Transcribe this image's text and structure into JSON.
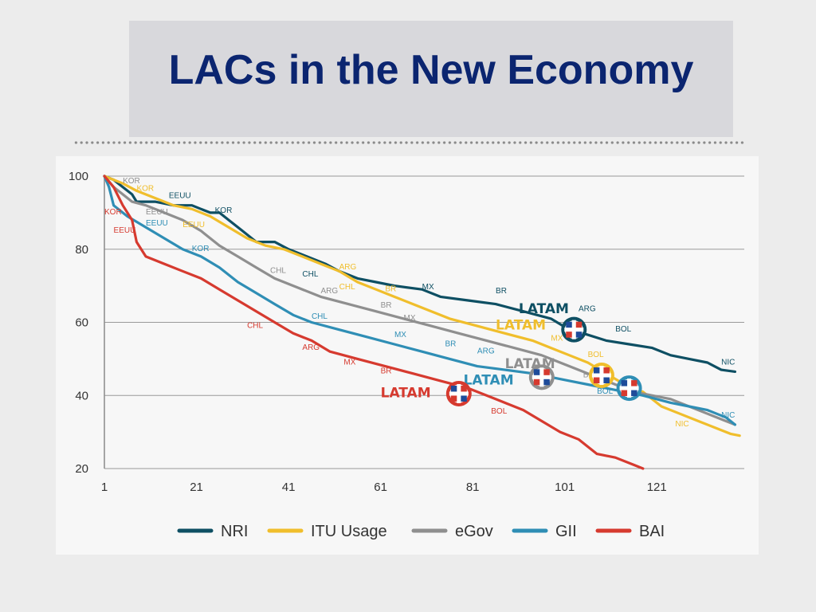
{
  "title": "LACs in the New Economy",
  "chart_data": {
    "type": "line",
    "xlim": [
      1,
      140
    ],
    "ylim": [
      20,
      100
    ],
    "x_ticks": [
      "1",
      "21",
      "41",
      "61",
      "81",
      "101",
      "121"
    ],
    "x_tick_values": [
      1,
      21,
      41,
      61,
      81,
      101,
      121
    ],
    "y_ticks": [
      "20",
      "40",
      "60",
      "80",
      "100"
    ],
    "y_tick_values": [
      20,
      40,
      60,
      80,
      100
    ],
    "grid": true,
    "legend_position": "bottom",
    "series": [
      {
        "name": "NRI",
        "color": "#0e4f63",
        "points": [
          [
            1,
            100
          ],
          [
            3,
            99
          ],
          [
            5,
            97
          ],
          [
            7,
            95
          ],
          [
            8,
            93
          ],
          [
            12,
            93
          ],
          [
            16,
            92
          ],
          [
            20,
            92
          ],
          [
            22,
            91
          ],
          [
            24,
            90
          ],
          [
            26,
            90
          ],
          [
            28,
            88
          ],
          [
            31,
            85
          ],
          [
            34,
            82
          ],
          [
            38,
            82
          ],
          [
            41,
            80
          ],
          [
            45,
            78
          ],
          [
            49,
            76
          ],
          [
            52,
            74
          ],
          [
            56,
            72
          ],
          [
            60,
            71
          ],
          [
            64,
            70
          ],
          [
            70,
            69
          ],
          [
            74,
            67
          ],
          [
            80,
            66
          ],
          [
            86,
            65
          ],
          [
            92,
            63
          ],
          [
            98,
            61
          ],
          [
            102,
            58
          ],
          [
            105,
            57
          ],
          [
            110,
            55
          ],
          [
            115,
            54
          ],
          [
            120,
            53
          ],
          [
            124,
            51
          ],
          [
            128,
            50
          ],
          [
            132,
            49
          ],
          [
            135,
            47
          ],
          [
            138,
            46.5
          ]
        ]
      },
      {
        "name": "ITU Usage",
        "color": "#f0be2c",
        "points": [
          [
            1,
            100
          ],
          [
            3,
            99
          ],
          [
            5,
            98
          ],
          [
            8,
            96
          ],
          [
            12,
            94
          ],
          [
            16,
            92
          ],
          [
            20,
            91
          ],
          [
            24,
            89
          ],
          [
            28,
            86
          ],
          [
            32,
            83
          ],
          [
            36,
            81
          ],
          [
            40,
            80
          ],
          [
            44,
            78
          ],
          [
            48,
            76
          ],
          [
            52,
            74
          ],
          [
            56,
            71
          ],
          [
            60,
            69
          ],
          [
            64,
            67
          ],
          [
            70,
            64
          ],
          [
            76,
            61
          ],
          [
            82,
            59
          ],
          [
            88,
            57
          ],
          [
            94,
            55
          ],
          [
            98,
            53
          ],
          [
            102,
            51
          ],
          [
            106,
            49
          ],
          [
            110,
            46
          ],
          [
            114,
            43
          ],
          [
            118,
            41
          ],
          [
            122,
            37
          ],
          [
            126,
            35
          ],
          [
            130,
            33
          ],
          [
            134,
            31
          ],
          [
            137,
            29.5
          ],
          [
            139,
            29
          ]
        ]
      },
      {
        "name": "eGov",
        "color": "#8f8f8f",
        "points": [
          [
            1,
            100
          ],
          [
            3,
            97
          ],
          [
            5,
            95
          ],
          [
            7,
            93
          ],
          [
            10,
            92
          ],
          [
            14,
            90
          ],
          [
            18,
            88
          ],
          [
            22,
            85
          ],
          [
            26,
            81
          ],
          [
            30,
            78
          ],
          [
            34,
            75
          ],
          [
            38,
            72
          ],
          [
            42,
            70
          ],
          [
            48,
            67
          ],
          [
            54,
            65
          ],
          [
            60,
            63
          ],
          [
            66,
            61
          ],
          [
            72,
            59
          ],
          [
            78,
            57
          ],
          [
            84,
            55
          ],
          [
            90,
            53
          ],
          [
            96,
            51
          ],
          [
            100,
            49
          ],
          [
            104,
            47
          ],
          [
            108,
            45
          ],
          [
            112,
            43
          ],
          [
            116,
            41
          ],
          [
            120,
            40
          ],
          [
            124,
            39
          ],
          [
            128,
            37
          ],
          [
            132,
            35
          ],
          [
            136,
            33
          ],
          [
            138,
            32
          ]
        ]
      },
      {
        "name": "GII",
        "color": "#2f8eb5",
        "points": [
          [
            1,
            100
          ],
          [
            2,
            97
          ],
          [
            3,
            92
          ],
          [
            6,
            89
          ],
          [
            10,
            86
          ],
          [
            14,
            83
          ],
          [
            18,
            80
          ],
          [
            22,
            78
          ],
          [
            26,
            75
          ],
          [
            30,
            71
          ],
          [
            34,
            68
          ],
          [
            38,
            65
          ],
          [
            42,
            62
          ],
          [
            46,
            60
          ],
          [
            52,
            58
          ],
          [
            58,
            56
          ],
          [
            64,
            54
          ],
          [
            70,
            52
          ],
          [
            76,
            50
          ],
          [
            82,
            48
          ],
          [
            88,
            47
          ],
          [
            94,
            46
          ],
          [
            98,
            45
          ],
          [
            102,
            44
          ],
          [
            106,
            43
          ],
          [
            110,
            42
          ],
          [
            114,
            41
          ],
          [
            118,
            40
          ],
          [
            124,
            38
          ],
          [
            128,
            37
          ],
          [
            132,
            36
          ],
          [
            136,
            34
          ],
          [
            138,
            32
          ]
        ]
      },
      {
        "name": "BAI",
        "color": "#d63a2f",
        "points": [
          [
            1,
            100
          ],
          [
            3,
            97
          ],
          [
            5,
            92
          ],
          [
            7,
            88
          ],
          [
            8,
            82
          ],
          [
            10,
            78
          ],
          [
            14,
            76
          ],
          [
            18,
            74
          ],
          [
            22,
            72
          ],
          [
            26,
            69
          ],
          [
            30,
            66
          ],
          [
            34,
            63
          ],
          [
            38,
            60
          ],
          [
            42,
            57
          ],
          [
            46,
            55
          ],
          [
            50,
            52
          ],
          [
            56,
            50
          ],
          [
            62,
            48
          ],
          [
            68,
            46
          ],
          [
            74,
            44
          ],
          [
            80,
            42
          ],
          [
            86,
            39
          ],
          [
            92,
            36
          ],
          [
            96,
            33
          ],
          [
            100,
            30
          ],
          [
            104,
            28
          ],
          [
            106,
            26
          ],
          [
            108,
            24
          ],
          [
            112,
            23
          ],
          [
            116,
            21
          ],
          [
            118,
            20
          ]
        ]
      }
    ],
    "annotations": [
      {
        "text": "KOR",
        "x": 5,
        "y": 98,
        "color": "#8f8f8f"
      },
      {
        "text": "KOR",
        "x": 8,
        "y": 96,
        "color": "#f0be2c"
      },
      {
        "text": "EEUU",
        "x": 15,
        "y": 94,
        "color": "#0e4f63"
      },
      {
        "text": "KOR",
        "x": 25,
        "y": 90,
        "color": "#0e4f63"
      },
      {
        "text": "KOR",
        "x": 1,
        "y": 89.5,
        "color": "#d63a2f"
      },
      {
        "text": "EEUU",
        "x": 10,
        "y": 89.5,
        "color": "#8f8f8f"
      },
      {
        "text": "EEUU",
        "x": 10,
        "y": 86.5,
        "color": "#2f8eb5"
      },
      {
        "text": "EEUU",
        "x": 18,
        "y": 86,
        "color": "#f0be2c"
      },
      {
        "text": "EEUU",
        "x": 3,
        "y": 84.5,
        "color": "#d63a2f"
      },
      {
        "text": "KOR",
        "x": 20,
        "y": 79.5,
        "color": "#2f8eb5"
      },
      {
        "text": "ARG",
        "x": 52,
        "y": 74.5,
        "color": "#f0be2c"
      },
      {
        "text": "CHL",
        "x": 37,
        "y": 73.5,
        "color": "#8f8f8f"
      },
      {
        "text": "CHL",
        "x": 44,
        "y": 72.5,
        "color": "#0e4f63"
      },
      {
        "text": "MX",
        "x": 70,
        "y": 69,
        "color": "#0e4f63"
      },
      {
        "text": "CHL",
        "x": 52,
        "y": 69,
        "color": "#f0be2c"
      },
      {
        "text": "BR",
        "x": 62,
        "y": 68.5,
        "color": "#f0be2c"
      },
      {
        "text": "BR",
        "x": 86,
        "y": 68,
        "color": "#0e4f63"
      },
      {
        "text": "ARG",
        "x": 48,
        "y": 68,
        "color": "#8f8f8f"
      },
      {
        "text": "BR",
        "x": 61,
        "y": 64,
        "color": "#8f8f8f"
      },
      {
        "text": "ARG",
        "x": 104,
        "y": 63,
        "color": "#0e4f63"
      },
      {
        "text": "CHL",
        "x": 46,
        "y": 61,
        "color": "#2f8eb5"
      },
      {
        "text": "MX",
        "x": 66,
        "y": 60.5,
        "color": "#8f8f8f"
      },
      {
        "text": "BOL",
        "x": 112,
        "y": 57.5,
        "color": "#0e4f63"
      },
      {
        "text": "CHL",
        "x": 32,
        "y": 58.5,
        "color": "#d63a2f"
      },
      {
        "text": "MX",
        "x": 64,
        "y": 56,
        "color": "#2f8eb5"
      },
      {
        "text": "MX",
        "x": 98,
        "y": 55,
        "color": "#f0be2c"
      },
      {
        "text": "BR",
        "x": 75,
        "y": 53.5,
        "color": "#2f8eb5"
      },
      {
        "text": "ARG",
        "x": 44,
        "y": 52.5,
        "color": "#d63a2f"
      },
      {
        "text": "ARG",
        "x": 82,
        "y": 51.5,
        "color": "#2f8eb5"
      },
      {
        "text": "BOL",
        "x": 106,
        "y": 50.5,
        "color": "#f0be2c"
      },
      {
        "text": "MX",
        "x": 53,
        "y": 48.5,
        "color": "#d63a2f"
      },
      {
        "text": "BOL",
        "x": 105,
        "y": 45,
        "color": "#8f8f8f"
      },
      {
        "text": "BR",
        "x": 61,
        "y": 46,
        "color": "#d63a2f"
      },
      {
        "text": "NIC",
        "x": 135,
        "y": 48.5,
        "color": "#0e4f63"
      },
      {
        "text": "BOL",
        "x": 108,
        "y": 40.5,
        "color": "#2f8eb5"
      },
      {
        "text": "NIC",
        "x": 135,
        "y": 34,
        "color": "#2f8eb5"
      },
      {
        "text": "NIC",
        "x": 125,
        "y": 31.5,
        "color": "#f0be2c"
      },
      {
        "text": "BOL",
        "x": 85,
        "y": 35,
        "color": "#d63a2f"
      }
    ],
    "latam_markers": [
      {
        "text": "LATAM",
        "color": "#0e4f63",
        "label_x": 91,
        "label_y": 62.5,
        "marker_x": 103,
        "marker_y": 58
      },
      {
        "text": "LATAM",
        "color": "#f0be2c",
        "label_x": 86,
        "label_y": 58,
        "marker_x": 109,
        "marker_y": 45.5
      },
      {
        "text": "LATAM",
        "color": "#8f8f8f",
        "label_x": 88,
        "label_y": 47.5,
        "marker_x": 96,
        "marker_y": 45
      },
      {
        "text": "LATAM",
        "color": "#2f8eb5",
        "label_x": 79,
        "label_y": 43,
        "marker_x": 115,
        "marker_y": 42
      },
      {
        "text": "LATAM",
        "color": "#d63a2f",
        "label_x": 61,
        "label_y": 39.5,
        "marker_x": 78,
        "marker_y": 40.5
      }
    ]
  }
}
